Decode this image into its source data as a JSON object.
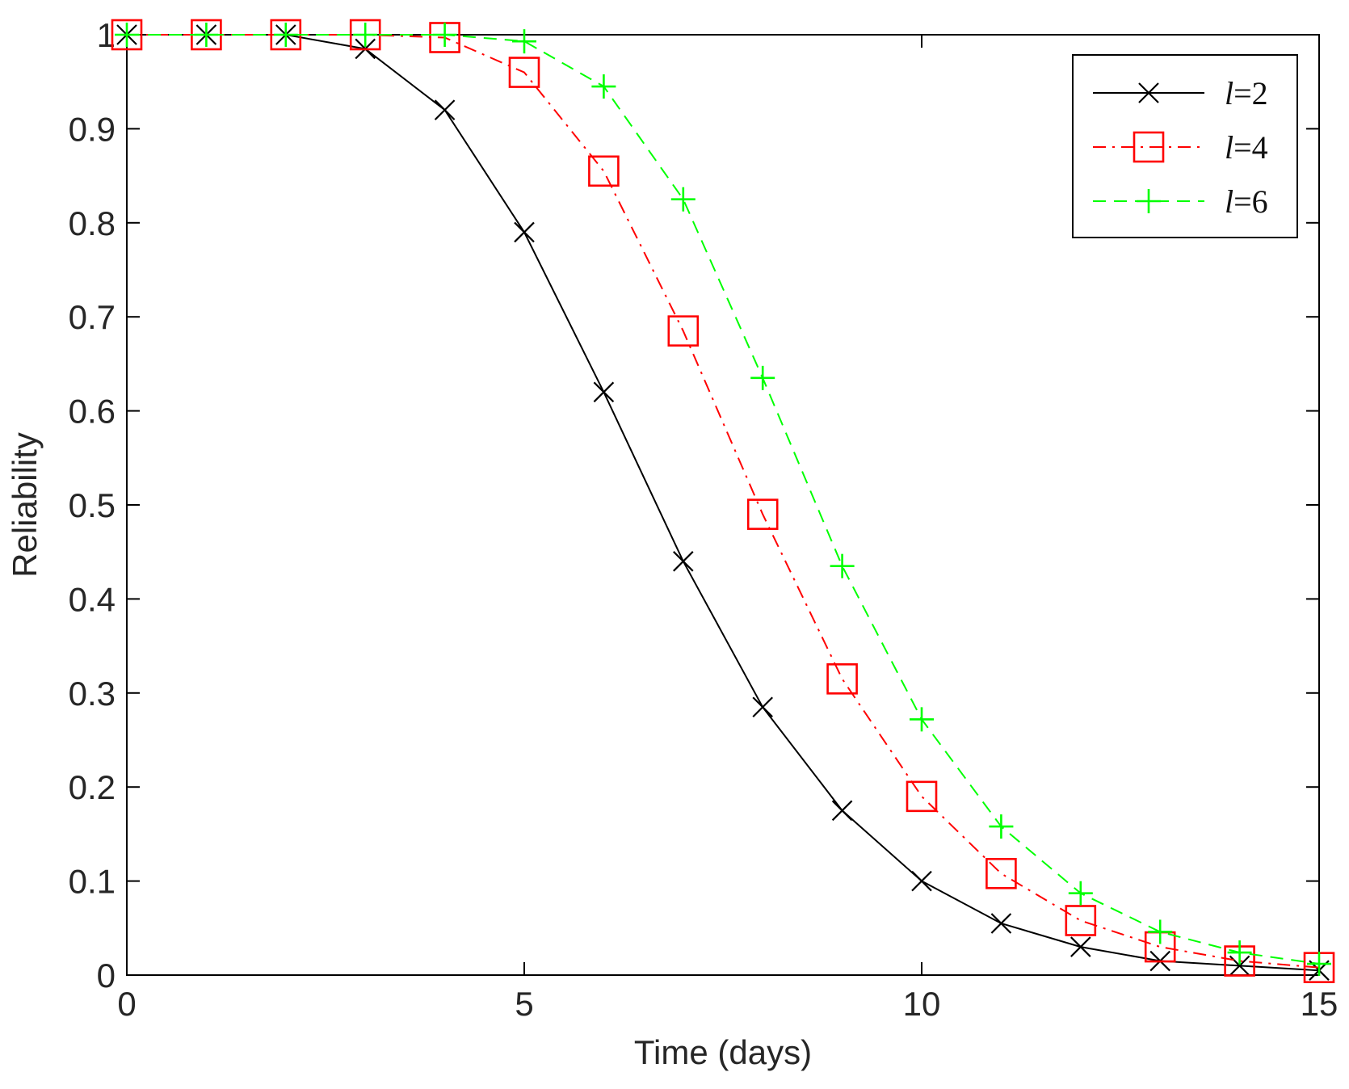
{
  "chart_data": {
    "type": "line",
    "title": "",
    "xlabel": "Time (days)",
    "ylabel": "Reliability",
    "xlim": [
      0,
      15
    ],
    "ylim": [
      0,
      1
    ],
    "xticks": [
      0,
      5,
      10,
      15
    ],
    "yticks": [
      0,
      0.1,
      0.2,
      0.3,
      0.4,
      0.5,
      0.6,
      0.7,
      0.8,
      0.9,
      1
    ],
    "grid": false,
    "legend_position": "top-right",
    "x": [
      0,
      1,
      2,
      3,
      4,
      5,
      6,
      7,
      8,
      9,
      10,
      11,
      12,
      13,
      14,
      15
    ],
    "series": [
      {
        "name": "l=2",
        "legend_var": "l",
        "legend_val": "=2",
        "color": "#000000",
        "line_style": "solid",
        "marker": "x",
        "values": [
          1,
          1,
          1,
          0.985,
          0.92,
          0.79,
          0.62,
          0.44,
          0.285,
          0.175,
          0.1,
          0.055,
          0.03,
          0.015,
          0.01,
          0.005
        ]
      },
      {
        "name": "l=4",
        "legend_var": "l",
        "legend_val": "=4",
        "color": "#ff0000",
        "line_style": "dashdot",
        "marker": "square",
        "values": [
          1,
          1,
          1,
          1,
          0.997,
          0.96,
          0.855,
          0.685,
          0.49,
          0.315,
          0.19,
          0.108,
          0.058,
          0.03,
          0.015,
          0.008
        ]
      },
      {
        "name": "l=6",
        "legend_var": "l",
        "legend_val": "=6",
        "color": "#00ff00",
        "line_style": "dashed",
        "marker": "plus",
        "values": [
          1,
          1,
          1,
          1,
          1,
          0.993,
          0.945,
          0.825,
          0.635,
          0.435,
          0.272,
          0.158,
          0.087,
          0.046,
          0.024,
          0.012
        ]
      }
    ]
  }
}
